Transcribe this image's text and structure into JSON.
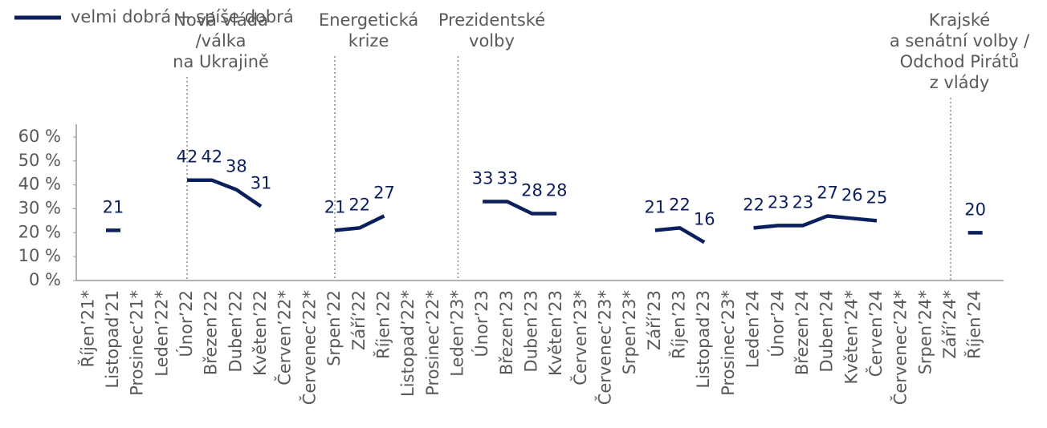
{
  "chart_data": {
    "type": "line",
    "categories": [
      "Říjen’21*",
      "Listopad’21",
      "Prosinec’21*",
      "Leden’22*",
      "Únor’22",
      "Březen’22",
      "Duben’22",
      "Květen’22",
      "Červen’22*",
      "Červenec’22*",
      "Srpen’22",
      "Září’22",
      "Říjen’22",
      "Listopad’22*",
      "Prosinec’22*",
      "Leden’23*",
      "Únor’23",
      "Březen’23",
      "Duben’23",
      "Květen’23",
      "Červen’23*",
      "Červenec’23*",
      "Srpen’23*",
      "Září’23",
      "Říjen’23",
      "Listopad’23",
      "Prosinec’23*",
      "Leden’24",
      "Únor’24",
      "Březen’24",
      "Duben’24",
      "Květen’24*",
      "Červen’24",
      "Červenec’24*",
      "Srpen’24*",
      "Září’24*",
      "Říjen’24"
    ],
    "series": [
      {
        "name": "velmi dobrá + spíše dobrá",
        "color": "#0b1f5c",
        "values": [
          null,
          21,
          null,
          null,
          42,
          42,
          38,
          31,
          null,
          null,
          21,
          22,
          27,
          null,
          null,
          null,
          33,
          33,
          28,
          28,
          null,
          null,
          null,
          21,
          22,
          16,
          null,
          22,
          23,
          23,
          27,
          26,
          25,
          null,
          null,
          null,
          20
        ]
      }
    ],
    "ylim": [
      0,
      60
    ],
    "yticks": [
      {
        "value": 0,
        "label": "0 %"
      },
      {
        "value": 10,
        "label": "10 %"
      },
      {
        "value": 20,
        "label": "20 %"
      },
      {
        "value": 30,
        "label": "30 %"
      },
      {
        "value": 40,
        "label": "40 %"
      },
      {
        "value": 50,
        "label": "50 %"
      },
      {
        "value": 60,
        "label": "60 %"
      }
    ],
    "annotations": [
      {
        "category": "Únor’22",
        "lines": [
          "Nová vláda",
          "/válka",
          "na Ukrajině"
        ]
      },
      {
        "category": "Srpen’22",
        "lines": [
          "Energetická",
          "krize"
        ]
      },
      {
        "category": "Leden’23*",
        "lines": [
          "Prezidentské",
          "volby"
        ]
      },
      {
        "category": "Září’24*",
        "lines": [
          "Krajské",
          "a senátní volby /",
          "Odchod Pirátů",
          "z vlády"
        ]
      }
    ],
    "legend": "top-left"
  }
}
